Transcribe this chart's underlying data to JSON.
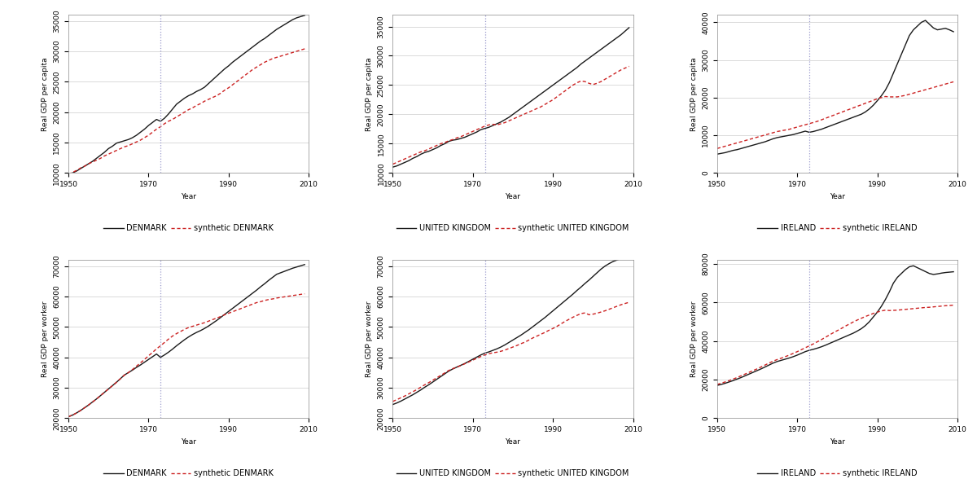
{
  "panels": [
    {
      "ylabel": "Real GDP per capita",
      "country": "DENMARK",
      "legend1": "DENMARK",
      "legend2": "synthetic DENMARK",
      "vline_year": 1973,
      "xlim": [
        1950,
        2010
      ],
      "ylim": [
        10000,
        36000
      ],
      "yticks": [
        10000,
        15000,
        20000,
        25000,
        30000,
        35000
      ],
      "row": 0,
      "col": 0,
      "actual": [
        9800,
        10000,
        10300,
        10700,
        11100,
        11500,
        11900,
        12400,
        12900,
        13400,
        14000,
        14400,
        14900,
        15100,
        15300,
        15500,
        15800,
        16200,
        16700,
        17200,
        17800,
        18300,
        18800,
        18500,
        19000,
        19700,
        20500,
        21300,
        21800,
        22300,
        22700,
        23000,
        23400,
        23700,
        24100,
        24700,
        25300,
        25900,
        26500,
        27100,
        27600,
        28200,
        28700,
        29200,
        29700,
        30200,
        30700,
        31200,
        31700,
        32100,
        32600,
        33100,
        33600,
        34000,
        34400,
        34800,
        35200,
        35500,
        35700,
        35900
      ],
      "synthetic": [
        9800,
        10100,
        10400,
        10800,
        11100,
        11500,
        11800,
        12100,
        12400,
        12800,
        13100,
        13400,
        13700,
        14000,
        14300,
        14500,
        14800,
        15100,
        15400,
        15800,
        16200,
        16700,
        17200,
        17600,
        18100,
        18500,
        18800,
        19200,
        19600,
        20000,
        20400,
        20700,
        21100,
        21400,
        21800,
        22100,
        22400,
        22700,
        23100,
        23600,
        24000,
        24500,
        25000,
        25500,
        26000,
        26500,
        27000,
        27400,
        27800,
        28200,
        28500,
        28800,
        29000,
        29200,
        29400,
        29600,
        29800,
        30000,
        30200,
        30400
      ]
    },
    {
      "ylabel": "Real GDP per capita",
      "country": "UNITED KINGDOM",
      "legend1": "UNITED KINGDOM",
      "legend2": "synthetic UNITED KINGDOM",
      "vline_year": 1973,
      "xlim": [
        1950,
        2010
      ],
      "ylim": [
        10000,
        37000
      ],
      "yticks": [
        10000,
        15000,
        20000,
        25000,
        30000,
        35000
      ],
      "row": 0,
      "col": 1,
      "actual": [
        11000,
        11200,
        11500,
        11800,
        12100,
        12500,
        12800,
        13200,
        13500,
        13700,
        14000,
        14300,
        14700,
        15000,
        15400,
        15600,
        15700,
        15900,
        16100,
        16400,
        16700,
        17000,
        17400,
        17600,
        17800,
        18100,
        18400,
        18700,
        19100,
        19500,
        20000,
        20500,
        21000,
        21500,
        22000,
        22500,
        23000,
        23500,
        24000,
        24500,
        25000,
        25500,
        26000,
        26500,
        27000,
        27500,
        28000,
        28600,
        29100,
        29600,
        30100,
        30600,
        31100,
        31600,
        32100,
        32600,
        33100,
        33600,
        34200,
        34800
      ],
      "synthetic": [
        11500,
        11800,
        12100,
        12400,
        12700,
        13000,
        13300,
        13600,
        13800,
        14100,
        14400,
        14700,
        15000,
        15200,
        15500,
        15700,
        16000,
        16200,
        16500,
        16800,
        17100,
        17400,
        17700,
        18000,
        18200,
        18300,
        18200,
        18400,
        18600,
        18900,
        19200,
        19500,
        19800,
        20100,
        20400,
        20700,
        21000,
        21300,
        21700,
        22100,
        22500,
        23000,
        23500,
        24000,
        24500,
        25000,
        25400,
        25700,
        25600,
        25300,
        25100,
        25300,
        25600,
        26000,
        26400,
        26800,
        27200,
        27600,
        27900,
        28200
      ]
    },
    {
      "ylabel": "Real GDP per capita",
      "country": "IRELAND",
      "legend1": "IRELAND",
      "legend2": "synthetic IRELAND",
      "vline_year": 1973,
      "xlim": [
        1950,
        2010
      ],
      "ylim": [
        0,
        42000
      ],
      "yticks": [
        0,
        10000,
        20000,
        30000,
        40000
      ],
      "row": 0,
      "col": 2,
      "actual": [
        5000,
        5200,
        5400,
        5700,
        6000,
        6200,
        6500,
        6800,
        7100,
        7400,
        7700,
        8000,
        8300,
        8700,
        9100,
        9400,
        9600,
        9800,
        10000,
        10200,
        10500,
        10800,
        11100,
        10800,
        11000,
        11300,
        11600,
        12000,
        12400,
        12800,
        13200,
        13600,
        14000,
        14400,
        14800,
        15200,
        15600,
        16200,
        17000,
        18000,
        19200,
        20500,
        22000,
        24000,
        26500,
        29000,
        31500,
        34000,
        36500,
        38000,
        39000,
        40000,
        40500,
        39500,
        38500,
        38000,
        38200,
        38400,
        38000,
        37500
      ],
      "synthetic": [
        6500,
        6800,
        7100,
        7400,
        7700,
        8000,
        8300,
        8600,
        8900,
        9200,
        9500,
        9800,
        10100,
        10400,
        10700,
        11000,
        11200,
        11400,
        11600,
        11900,
        12200,
        12500,
        12800,
        13100,
        13400,
        13700,
        14100,
        14500,
        14900,
        15300,
        15700,
        16100,
        16500,
        16900,
        17300,
        17700,
        18100,
        18500,
        18900,
        19300,
        19700,
        20000,
        20300,
        20200,
        20200,
        20200,
        20400,
        20600,
        20900,
        21200,
        21500,
        21800,
        22100,
        22400,
        22700,
        23000,
        23300,
        23600,
        23900,
        24200
      ]
    },
    {
      "ylabel": "Real GDP per worker",
      "country": "DENMARK",
      "legend1": "DENMARK",
      "legend2": "synthetic DENMARK",
      "vline_year": 1973,
      "xlim": [
        1950,
        2010
      ],
      "ylim": [
        20000,
        72000
      ],
      "yticks": [
        20000,
        30000,
        40000,
        50000,
        60000,
        70000
      ],
      "row": 1,
      "col": 0,
      "actual": [
        20500,
        21000,
        21700,
        22500,
        23400,
        24300,
        25300,
        26300,
        27400,
        28500,
        29600,
        30700,
        31800,
        33000,
        34200,
        35000,
        35800,
        36700,
        37500,
        38400,
        39300,
        40200,
        41100,
        40000,
        40800,
        41700,
        42700,
        43800,
        44800,
        45800,
        46700,
        47500,
        48200,
        48800,
        49500,
        50300,
        51200,
        52100,
        53100,
        54100,
        55100,
        56100,
        57100,
        58100,
        59100,
        60100,
        61100,
        62100,
        63200,
        64200,
        65300,
        66300,
        67300,
        67800,
        68300,
        68800,
        69300,
        69700,
        70100,
        70500
      ],
      "synthetic": [
        20500,
        21000,
        21700,
        22500,
        23400,
        24300,
        25300,
        26300,
        27400,
        28500,
        29600,
        30700,
        31800,
        33000,
        34200,
        35000,
        36000,
        37100,
        38200,
        39300,
        40500,
        41600,
        42800,
        43800,
        44900,
        46000,
        47000,
        47800,
        48500,
        49200,
        49800,
        50200,
        50600,
        51000,
        51400,
        51900,
        52400,
        52900,
        53400,
        54000,
        54500,
        55000,
        55500,
        56000,
        56500,
        57000,
        57500,
        58000,
        58300,
        58700,
        59000,
        59200,
        59500,
        59700,
        59900,
        60100,
        60300,
        60500,
        60700,
        60900
      ]
    },
    {
      "ylabel": "Real GDP per worker",
      "country": "UNITED KINGDOM",
      "legend1": "UNITED KINGDOM",
      "legend2": "synthetic UNITED KINGDOM",
      "vline_year": 1973,
      "xlim": [
        1950,
        2010
      ],
      "ylim": [
        20000,
        72000
      ],
      "yticks": [
        20000,
        30000,
        40000,
        50000,
        60000,
        70000
      ],
      "row": 1,
      "col": 1,
      "actual": [
        24500,
        25000,
        25600,
        26300,
        27000,
        27700,
        28500,
        29300,
        30200,
        31000,
        31900,
        32800,
        33700,
        34600,
        35500,
        36200,
        36800,
        37400,
        38000,
        38700,
        39400,
        40100,
        40800,
        41400,
        41800,
        42300,
        42800,
        43400,
        44100,
        44900,
        45700,
        46500,
        47300,
        48200,
        49100,
        50100,
        51100,
        52100,
        53100,
        54200,
        55300,
        56400,
        57500,
        58600,
        59700,
        60800,
        62000,
        63100,
        64300,
        65400,
        66600,
        67800,
        69000,
        70000,
        70800,
        71500,
        72000,
        72500,
        72800,
        73000
      ],
      "synthetic": [
        25500,
        26100,
        26700,
        27300,
        28000,
        28700,
        29400,
        30200,
        31000,
        31700,
        32500,
        33300,
        34100,
        34900,
        35700,
        36300,
        36800,
        37300,
        37900,
        38500,
        39100,
        39700,
        40300,
        40800,
        41200,
        41500,
        41700,
        42000,
        42400,
        42900,
        43400,
        43900,
        44500,
        45000,
        45700,
        46400,
        47000,
        47600,
        48200,
        48900,
        49500,
        50200,
        51000,
        51800,
        52500,
        53200,
        53800,
        54400,
        54600,
        54000,
        54200,
        54500,
        54900,
        55300,
        55800,
        56300,
        56800,
        57300,
        57700,
        58100
      ]
    },
    {
      "ylabel": "Real GDP per worker",
      "country": "IRELAND",
      "legend1": "IRELAND",
      "legend2": "synthetic IRELAND",
      "vline_year": 1973,
      "xlim": [
        1950,
        2010
      ],
      "ylim": [
        0,
        82000
      ],
      "yticks": [
        0,
        20000,
        40000,
        60000,
        80000
      ],
      "row": 1,
      "col": 2,
      "actual": [
        17000,
        17500,
        18100,
        18800,
        19500,
        20300,
        21100,
        22000,
        22900,
        23800,
        24700,
        25600,
        26600,
        27600,
        28600,
        29400,
        30000,
        30600,
        31200,
        31900,
        32700,
        33600,
        34500,
        35200,
        35700,
        36300,
        37000,
        37800,
        38700,
        39600,
        40500,
        41400,
        42300,
        43200,
        44100,
        45200,
        46400,
        48000,
        50000,
        52500,
        55000,
        58000,
        61500,
        65500,
        70000,
        73000,
        75000,
        77000,
        78500,
        79000,
        78000,
        77000,
        76000,
        75000,
        74500,
        74800,
        75200,
        75500,
        75700,
        75900
      ],
      "synthetic": [
        17500,
        18100,
        18800,
        19500,
        20300,
        21100,
        22000,
        22900,
        23800,
        24700,
        25600,
        26600,
        27600,
        28600,
        29600,
        30400,
        31100,
        31900,
        32700,
        33600,
        34500,
        35500,
        36500,
        37500,
        38500,
        39600,
        40700,
        41900,
        43100,
        44300,
        45400,
        46500,
        47700,
        48800,
        49900,
        50900,
        51800,
        52700,
        53500,
        54300,
        55000,
        55600,
        56000,
        55800,
        55900,
        56000,
        56200,
        56400,
        56600,
        56800,
        57000,
        57200,
        57400,
        57500,
        57700,
        57900,
        58100,
        58300,
        58400,
        58600
      ]
    }
  ],
  "actual_color": "#1a1a1a",
  "synthetic_color": "#cc2222",
  "vline_color": "#9999cc",
  "background_color": "#ffffff",
  "xlabel": "Year",
  "tick_fontsize": 6.5,
  "label_fontsize": 6.5,
  "legend_fontsize": 7.0,
  "figure_width": 12.0,
  "figure_height": 6.04
}
